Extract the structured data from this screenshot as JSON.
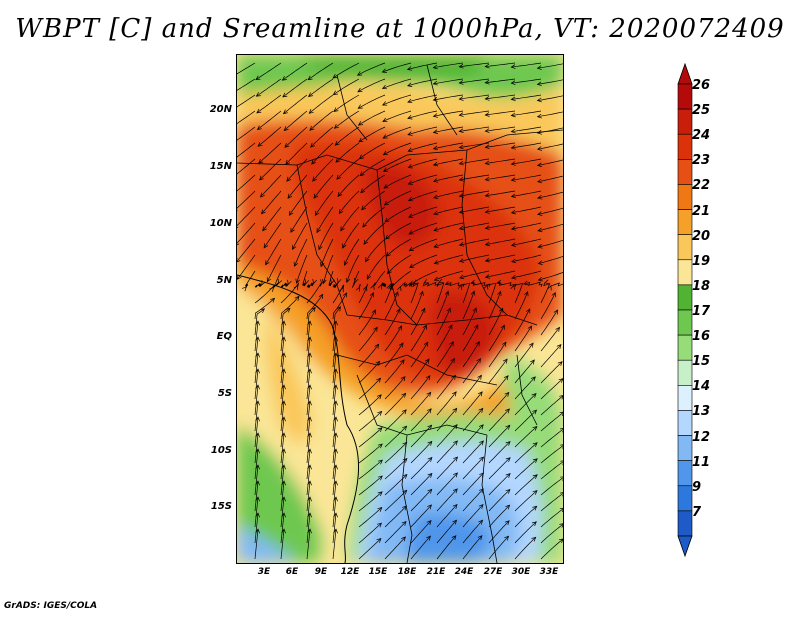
{
  "title": "WBPT [C] and Sreamline at 1000hPa, VT: 2020072409",
  "credit": "GrADS: IGES/COLA",
  "map": {
    "lat_labels": [
      "20N",
      "15N",
      "10N",
      "5N",
      "EQ",
      "5S",
      "10S",
      "15S"
    ],
    "lon_labels": [
      "3E",
      "6E",
      "9E",
      "12E",
      "15E",
      "18E",
      "21E",
      "24E",
      "27E",
      "30E",
      "33E"
    ]
  },
  "colorbar": {
    "levels": [
      "26",
      "25",
      "24",
      "23",
      "22",
      "21",
      "20",
      "19",
      "18",
      "17",
      "16",
      "15",
      "14",
      "13",
      "12",
      "11",
      "9",
      "7"
    ],
    "colors": [
      "#b40a0a",
      "#c81e0a",
      "#dc320a",
      "#e65014",
      "#f07814",
      "#f5a028",
      "#fac85a",
      "#fae696",
      "#50b432",
      "#6ec850",
      "#96dc78",
      "#c8f0c8",
      "#dcf0ff",
      "#b4d7ff",
      "#82b9f5",
      "#5096eb",
      "#2d78dc",
      "#1e5ac8"
    ]
  }
}
